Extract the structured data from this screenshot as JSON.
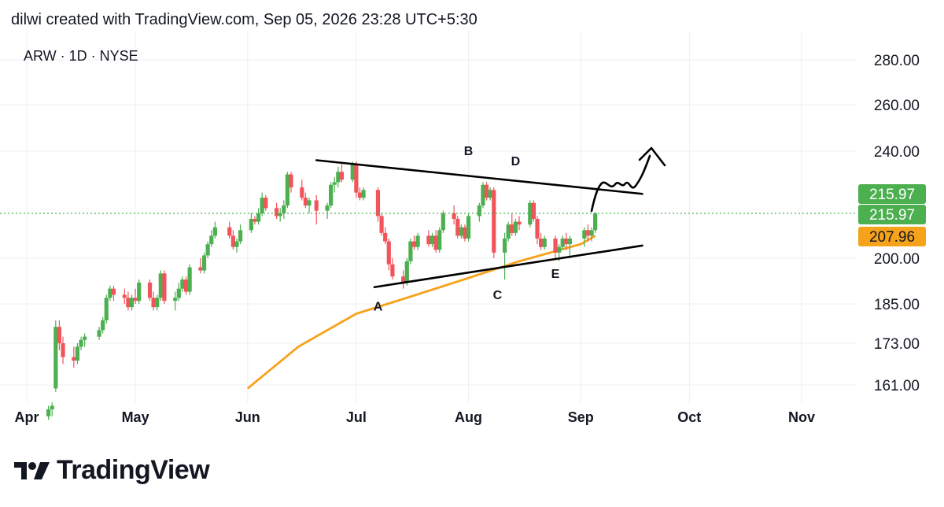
{
  "header": {
    "text": "dilwi created with TradingView.com, Sep 05, 2026 23:28 UTC+5:30"
  },
  "symbol": {
    "text": "ARW · 1D · NYSE"
  },
  "logo": {
    "text": "TradingView"
  },
  "colors": {
    "up": "#4caf50",
    "down": "#f2545b",
    "ma": "#f7a21b",
    "grid": "#eeeff2",
    "badge_green": "#4caf50",
    "badge_orange": "#f7a21b"
  },
  "chart_data": {
    "type": "candlestick",
    "x_axis": {
      "tick_labels": [
        "Apr",
        "May",
        "Jun",
        "Jul",
        "Aug",
        "Sep",
        "Oct",
        "Nov"
      ]
    },
    "y_axis": {
      "tick_labels": [
        "280.00",
        "260.00",
        "240.00",
        "200.00",
        "185.00",
        "173.00",
        "161.00"
      ],
      "ticks": [
        280,
        260,
        240,
        200,
        185,
        173,
        161
      ]
    },
    "price_badges": [
      {
        "label": "215.97",
        "value": 215.97,
        "kind": "green"
      },
      {
        "label": "215.97",
        "value": 215.97,
        "kind": "green"
      },
      {
        "label": "207.96",
        "value": 207.96,
        "kind": "orange"
      }
    ],
    "last_price": 215.97,
    "moving_average": {
      "color": "#f7a21b",
      "points": [
        [
          "Jun 01",
          160
        ],
        [
          "Jun 15",
          172
        ],
        [
          "Jul 01",
          182
        ],
        [
          "Jul 15",
          187
        ],
        [
          "Aug 01",
          193.5
        ],
        [
          "Aug 15",
          199
        ],
        [
          "Sep 01",
          205
        ],
        [
          "Sep 05",
          207.96
        ]
      ]
    },
    "trendlines": [
      {
        "name": "upper",
        "from": [
          "Jun 20",
          236.5
        ],
        "to": [
          "Sep 18",
          223.5
        ]
      },
      {
        "name": "lower",
        "from": [
          "Jul 06",
          190.5
        ],
        "to": [
          "Sep 18",
          204.5
        ]
      }
    ],
    "wave_labels": [
      {
        "text": "A",
        "date": "Jul 07",
        "price": 183
      },
      {
        "text": "B",
        "date": "Aug 01",
        "price": 238.5
      },
      {
        "text": "C",
        "date": "Aug 09",
        "price": 186.5
      },
      {
        "text": "D",
        "date": "Aug 14",
        "price": 234.5
      },
      {
        "text": "E",
        "date": "Aug 25",
        "price": 193.5
      }
    ],
    "candles": [
      [
        "Apr 07",
        152,
        155,
        151,
        154
      ],
      [
        "Apr 08",
        154,
        156,
        152,
        155
      ],
      [
        "Apr 09",
        160,
        180,
        159,
        178
      ],
      [
        "Apr 10",
        178,
        180,
        171,
        173
      ],
      [
        "Apr 11",
        173,
        175,
        167,
        169
      ],
      [
        "Apr 14",
        169,
        172,
        166,
        168
      ],
      [
        "Apr 15",
        168,
        173,
        167,
        172
      ],
      [
        "Apr 16",
        172,
        175,
        171,
        174
      ],
      [
        "Apr 17",
        174,
        176,
        172,
        175
      ],
      [
        "Apr 21",
        175,
        178,
        174,
        177
      ],
      [
        "Apr 22",
        177,
        181,
        176,
        180
      ],
      [
        "Apr 23",
        180,
        188,
        179,
        187
      ],
      [
        "Apr 24",
        187,
        191,
        186,
        190
      ],
      [
        "Apr 25",
        190,
        191,
        186,
        188
      ],
      [
        "Apr 28",
        188,
        190,
        185,
        187
      ],
      [
        "Apr 29",
        187,
        189,
        183,
        184
      ],
      [
        "Apr 30",
        184,
        188,
        183,
        187
      ],
      [
        "May 01",
        187,
        190,
        185,
        186
      ],
      [
        "May 02",
        186,
        193,
        185,
        192
      ],
      [
        "May 05",
        192,
        193,
        186,
        187
      ],
      [
        "May 06",
        187,
        189,
        183,
        184
      ],
      [
        "May 07",
        184,
        188,
        183,
        187
      ],
      [
        "May 08",
        187,
        196,
        186,
        195
      ],
      [
        "May 09",
        195,
        196,
        185,
        186
      ],
      [
        "May 12",
        186,
        189,
        183,
        187
      ],
      [
        "May 13",
        187,
        192,
        186,
        190
      ],
      [
        "May 14",
        190,
        194,
        189,
        193
      ],
      [
        "May 15",
        193,
        194,
        188,
        189
      ],
      [
        "May 16",
        189,
        198,
        188,
        197
      ],
      [
        "May 19",
        197,
        200,
        195,
        196
      ],
      [
        "May 20",
        196,
        202,
        195,
        201
      ],
      [
        "May 21",
        201,
        206,
        200,
        205
      ],
      [
        "May 22",
        205,
        210,
        204,
        208
      ],
      [
        "May 23",
        208,
        213,
        207,
        211
      ],
      [
        "May 27",
        211,
        213,
        207,
        208
      ],
      [
        "May 28",
        208,
        210,
        203,
        204
      ],
      [
        "May 29",
        204,
        207,
        202,
        206
      ],
      [
        "May 30",
        206,
        212,
        205,
        210
      ],
      [
        "Jun 02",
        210,
        216,
        209,
        214
      ],
      [
        "Jun 03",
        214,
        215,
        212,
        213
      ],
      [
        "Jun 04",
        213,
        218,
        212,
        216
      ],
      [
        "Jun 05",
        216,
        224,
        215,
        222
      ],
      [
        "Jun 06",
        222,
        223,
        217,
        218
      ],
      [
        "Jun 09",
        218,
        220,
        214,
        215
      ],
      [
        "Jun 10",
        215,
        218,
        213,
        216
      ],
      [
        "Jun 11",
        216,
        221,
        214,
        219
      ],
      [
        "Jun 12",
        219,
        232,
        218,
        231
      ],
      [
        "Jun 13",
        231,
        232,
        224,
        226
      ],
      [
        "Jun 16",
        226,
        229,
        221,
        222
      ],
      [
        "Jun 17",
        222,
        224,
        218,
        219
      ],
      [
        "Jun 18",
        219,
        222,
        216,
        221
      ],
      [
        "Jun 20",
        221,
        223,
        212,
        217
      ],
      [
        "Jun 23",
        217,
        220,
        214,
        219
      ],
      [
        "Jun 24",
        219,
        228,
        218,
        227
      ],
      [
        "Jun 25",
        227,
        230,
        224,
        228
      ],
      [
        "Jun 26",
        228,
        234,
        226,
        232
      ],
      [
        "Jun 27",
        232,
        235,
        228,
        229
      ],
      [
        "Jun 30",
        229,
        236,
        228,
        235
      ],
      [
        "Jul 01",
        235,
        236,
        222,
        224
      ],
      [
        "Jul 02",
        224,
        226,
        221,
        222
      ],
      [
        "Jul 03",
        222,
        226,
        221,
        225
      ],
      [
        "Jul 07",
        225,
        226,
        213,
        215
      ],
      [
        "Jul 08",
        215,
        216,
        208,
        209
      ],
      [
        "Jul 09",
        209,
        211,
        205,
        206
      ],
      [
        "Jul 10",
        206,
        207,
        196,
        198
      ],
      [
        "Jul 11",
        198,
        200,
        193,
        194
      ],
      [
        "Jul 14",
        194,
        196,
        190,
        192
      ],
      [
        "Jul 15",
        192,
        200,
        191,
        199
      ],
      [
        "Jul 16",
        199,
        207,
        198,
        206
      ],
      [
        "Jul 17",
        206,
        208,
        203,
        204
      ],
      [
        "Jul 18",
        204,
        209,
        203,
        208
      ],
      [
        "Jul 21",
        208,
        210,
        204,
        205
      ],
      [
        "Jul 22",
        205,
        209,
        204,
        208
      ],
      [
        "Jul 23",
        208,
        210,
        202,
        203
      ],
      [
        "Jul 24",
        203,
        211,
        202,
        210
      ],
      [
        "Jul 25",
        210,
        217,
        209,
        216
      ],
      [
        "Jul 28",
        216,
        219,
        212,
        214
      ],
      [
        "Jul 29",
        214,
        215,
        207,
        208
      ],
      [
        "Jul 30",
        208,
        212,
        207,
        211
      ],
      [
        "Jul 31",
        211,
        212,
        206,
        207
      ],
      [
        "Aug 01",
        207,
        216,
        206,
        215
      ],
      [
        "Aug 04",
        215,
        220,
        213,
        219
      ],
      [
        "Aug 05",
        219,
        228,
        218,
        227
      ],
      [
        "Aug 06",
        227,
        228,
        221,
        222
      ],
      [
        "Aug 07",
        222,
        226,
        221,
        225
      ],
      [
        "Aug 08",
        225,
        226,
        200,
        202
      ],
      [
        "Aug 11",
        202,
        209,
        193,
        207
      ],
      [
        "Aug 12",
        207,
        213,
        206,
        212
      ],
      [
        "Aug 13",
        212,
        216,
        208,
        209
      ],
      [
        "Aug 14",
        209,
        214,
        208,
        213
      ],
      [
        "Aug 15",
        213,
        215,
        210,
        212
      ],
      [
        "Aug 18",
        212,
        221,
        211,
        220
      ],
      [
        "Aug 19",
        220,
        221,
        213,
        214
      ],
      [
        "Aug 20",
        214,
        215,
        205,
        207
      ],
      [
        "Aug 21",
        207,
        209,
        203,
        204
      ],
      [
        "Aug 22",
        204,
        208,
        203,
        207
      ],
      [
        "Aug 25",
        207,
        208,
        200,
        202
      ],
      [
        "Aug 26",
        202,
        205,
        199,
        204
      ],
      [
        "Aug 27",
        204,
        208,
        203,
        207
      ],
      [
        "Aug 28",
        207,
        209,
        203,
        205
      ],
      [
        "Aug 29",
        205,
        208,
        200,
        207
      ],
      [
        "Sep 02",
        207,
        211,
        204,
        210
      ],
      [
        "Sep 03",
        210,
        212,
        206,
        208
      ],
      [
        "Sep 04",
        208,
        211,
        206,
        210
      ],
      [
        "Sep 05",
        210,
        216.5,
        209,
        215.97
      ]
    ]
  }
}
